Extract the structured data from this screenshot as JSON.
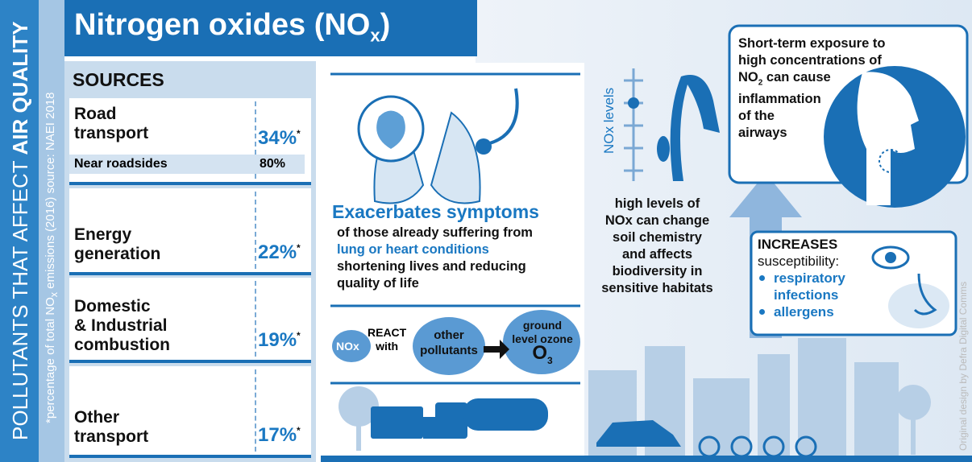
{
  "side_title": {
    "light": "POLLUTANTS THAT AFFECT ",
    "bold": "AIR QUALITY"
  },
  "footnote": {
    "before": "*percentage of total NO",
    "sub": "x",
    "after": " emissions (2016) source: NAEI 2018"
  },
  "title": {
    "text": "Nitrogen oxides (NO",
    "sub": "x",
    "end": ")"
  },
  "sources": {
    "heading": "SOURCES",
    "items": [
      {
        "lines": [
          "Road",
          "transport"
        ],
        "share": "34%",
        "note": "*",
        "detail": {
          "label": "Near roadsides",
          "share": "80%"
        }
      },
      {
        "lines": [
          "Energy",
          "generation"
        ],
        "share": "22%",
        "note": "*"
      },
      {
        "lines": [
          "Domestic",
          "& Industrial",
          "combustion"
        ],
        "share": "19%",
        "note": "*"
      },
      {
        "lines": [
          "Other",
          "transport"
        ],
        "share": "17%",
        "note": "*"
      }
    ]
  },
  "health": {
    "heading": "Exacerbates symptoms",
    "lines": [
      "of those already suffering from",
      "lung or heart conditions",
      "shortening lives and reducing",
      "quality of life"
    ]
  },
  "reaction": {
    "nox": "NOx",
    "react": "REACT",
    "with": "with",
    "other": [
      "other",
      "pollutants"
    ],
    "ozone": [
      "ground",
      "level ozone"
    ],
    "o3": {
      "text": "O",
      "sub": "3"
    }
  },
  "soil": {
    "axis_label": "NOx levels",
    "lines": [
      "high levels of",
      "NOx can change",
      "soil chemistry",
      "and affects",
      "biodiversity in",
      "sensitive habitats"
    ]
  },
  "exposure": {
    "lines": [
      "Short-term exposure to",
      "high concentrations of"
    ],
    "no2": {
      "text": "NO",
      "sub": "2",
      "after": " can cause"
    },
    "rest": [
      "inflammation",
      "of the",
      "airways"
    ]
  },
  "susceptibility": {
    "heading": "INCREASES",
    "subheading": "susceptibility:",
    "items": [
      [
        "respiratory",
        "infections"
      ],
      [
        "allergens"
      ]
    ]
  },
  "credit": "Original design by Defra Digital Comms"
}
